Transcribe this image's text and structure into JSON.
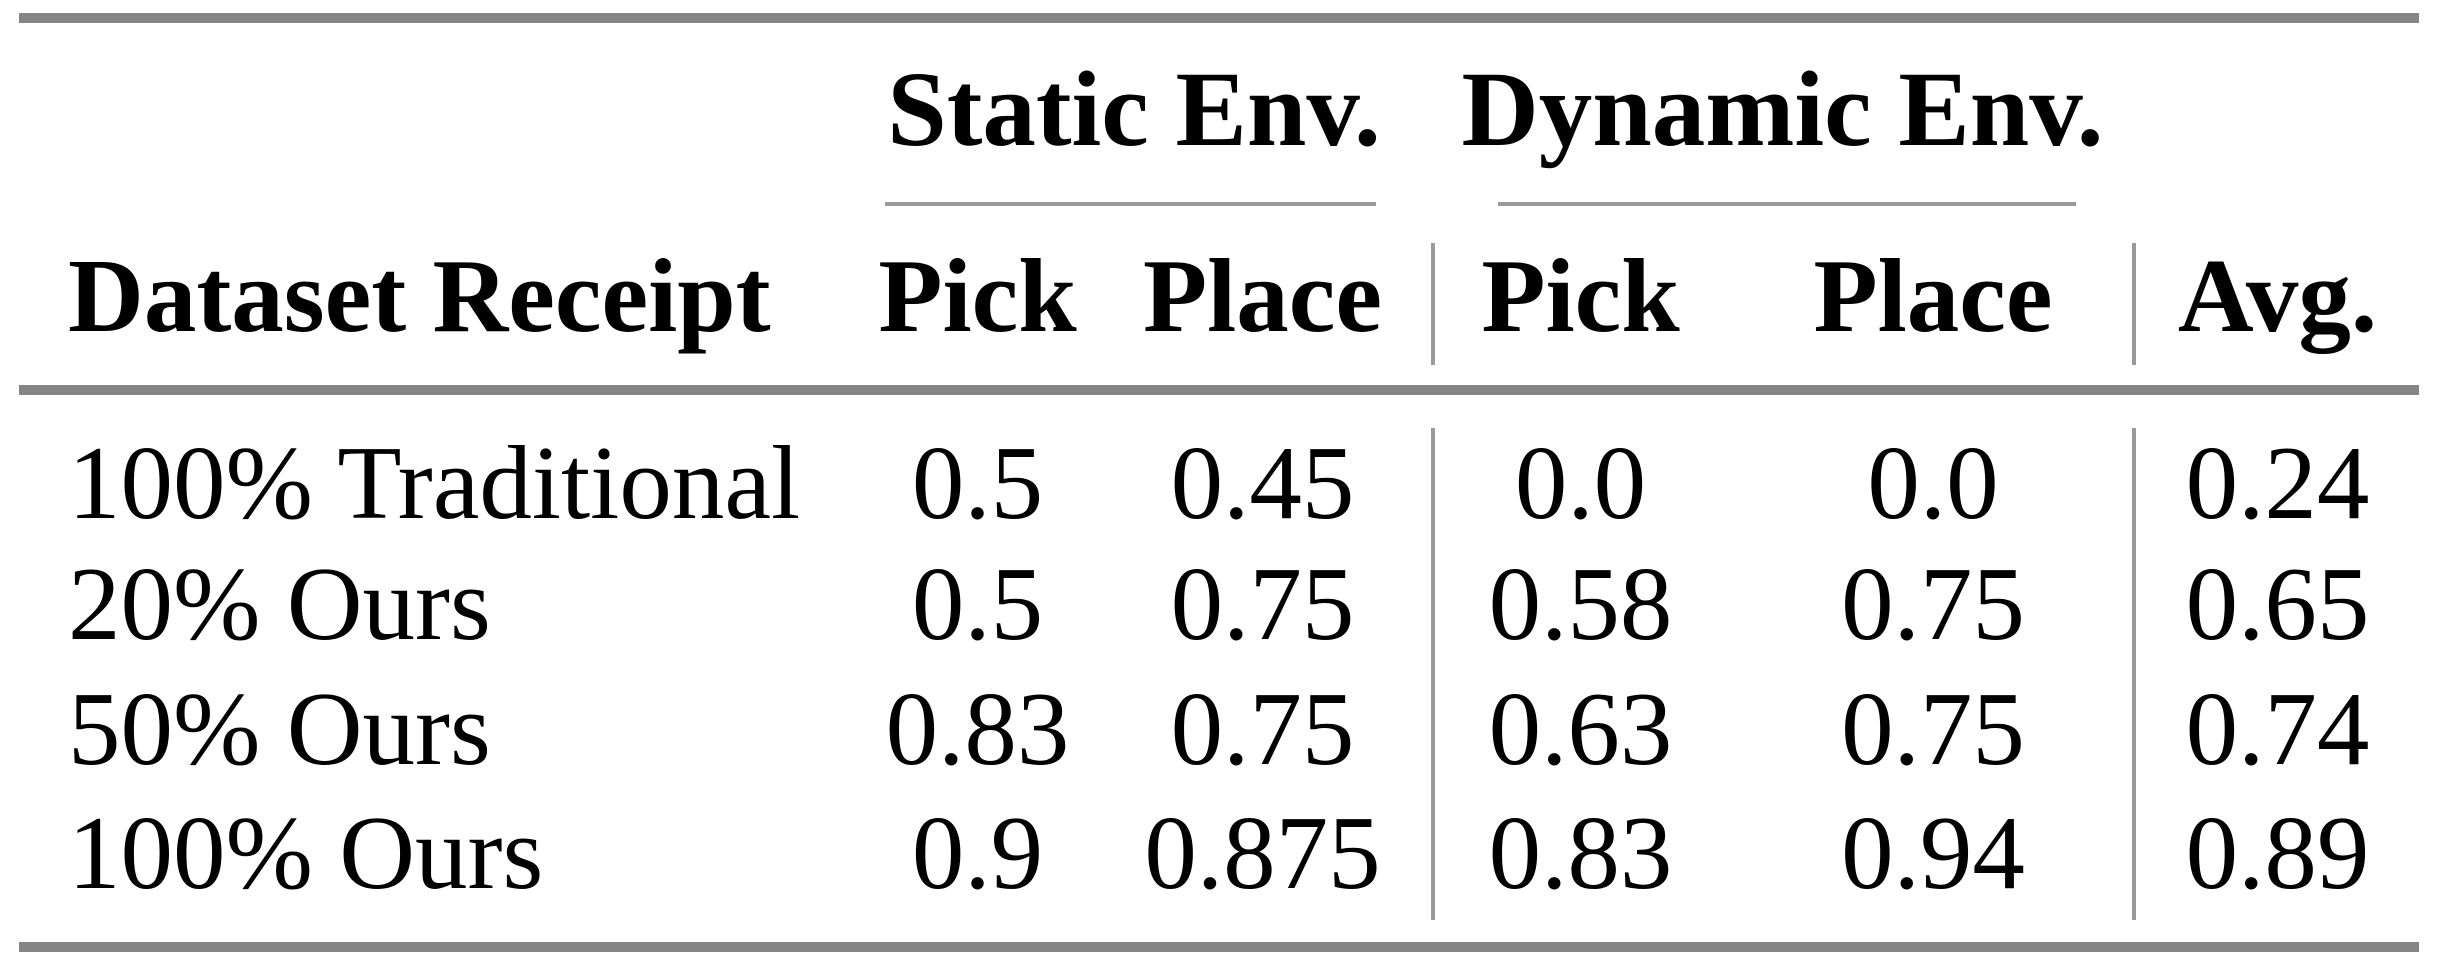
{
  "table": {
    "spanners": {
      "static": "Static Env.",
      "dynamic": "Dynamic Env."
    },
    "headers": {
      "row_header": "Dataset Receipt",
      "static_pick": "Pick",
      "static_place": "Place",
      "dynamic_pick": "Pick",
      "dynamic_place": "Place",
      "avg": "Avg."
    },
    "rows": [
      {
        "label": "100% Traditional",
        "static_pick": "0.5",
        "static_place": "0.45",
        "dynamic_pick": "0.0",
        "dynamic_place": "0.0",
        "avg": "0.24"
      },
      {
        "label": "20% Ours",
        "static_pick": "0.5",
        "static_place": "0.75",
        "dynamic_pick": "0.58",
        "dynamic_place": "0.75",
        "avg": "0.65"
      },
      {
        "label": "50% Ours",
        "static_pick": "0.83",
        "static_place": "0.75",
        "dynamic_pick": "0.63",
        "dynamic_place": "0.75",
        "avg": "0.74"
      },
      {
        "label": "100% Ours",
        "static_pick": "0.9",
        "static_place": "0.875",
        "dynamic_pick": "0.83",
        "dynamic_place": "0.94",
        "avg": "0.89"
      }
    ]
  },
  "colors": {
    "heavy_rule": "#858585",
    "light_rule": "#9a9a9a",
    "text": "#000000",
    "background": "#ffffff"
  }
}
